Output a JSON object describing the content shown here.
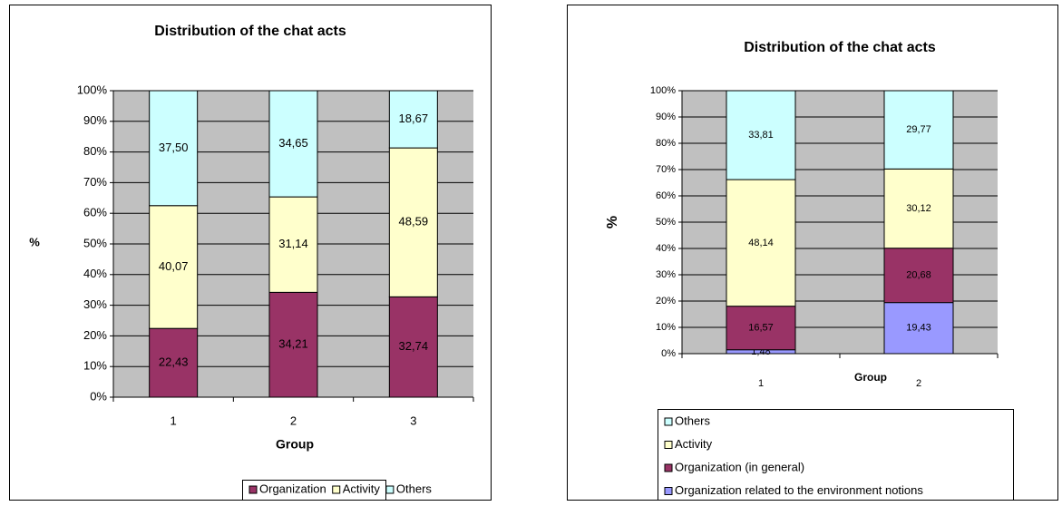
{
  "chart_data": [
    {
      "type": "bar",
      "stacked": true,
      "title": "Distribution of the chat acts",
      "x_label": "Group",
      "y_label": "%",
      "categories": [
        "1",
        "2",
        "3"
      ],
      "series": [
        {
          "name": "Organization",
          "color": "#993366",
          "values": [
            22.43,
            34.21,
            32.74
          ],
          "value_labels": [
            "22,43",
            "34,21",
            "32,74"
          ]
        },
        {
          "name": "Activity",
          "color": "#ffffcc",
          "values": [
            40.07,
            31.14,
            48.59
          ],
          "value_labels": [
            "40,07",
            "31,14",
            "48,59"
          ]
        },
        {
          "name": "Others",
          "color": "#ccffff",
          "values": [
            37.5,
            34.65,
            18.67
          ],
          "value_labels": [
            "37,50",
            "34,65",
            "18,67"
          ]
        }
      ],
      "ylim": [
        0,
        100
      ],
      "yticks": [
        {
          "value": 0,
          "label": "0%"
        },
        {
          "value": 10,
          "label": "10%"
        },
        {
          "value": 20,
          "label": "20%"
        },
        {
          "value": 30,
          "label": "30%"
        },
        {
          "value": 40,
          "label": "40%"
        },
        {
          "value": 50,
          "label": "50%"
        },
        {
          "value": 60,
          "label": "60%"
        },
        {
          "value": 70,
          "label": "70%"
        },
        {
          "value": 80,
          "label": "80%"
        },
        {
          "value": 90,
          "label": "90%"
        },
        {
          "value": 100,
          "label": "100%"
        }
      ],
      "grid": true,
      "legend": "bottom"
    },
    {
      "type": "bar",
      "stacked": true,
      "title": "Distribution of the chat acts",
      "x_label": "Group",
      "y_label": "%",
      "categories": [
        "1",
        "2"
      ],
      "series": [
        {
          "name": "Organization related to the environment notions",
          "color": "#9999ff",
          "values": [
            1.48,
            19.43
          ],
          "value_labels": [
            "1,48",
            "19,43"
          ]
        },
        {
          "name": "Organization (in general)",
          "color": "#993366",
          "values": [
            16.57,
            20.68
          ],
          "value_labels": [
            "16,57",
            "20,68"
          ]
        },
        {
          "name": "Activity",
          "color": "#ffffcc",
          "values": [
            48.14,
            30.12
          ],
          "value_labels": [
            "48,14",
            "30,12"
          ]
        },
        {
          "name": "Others",
          "color": "#ccffff",
          "values": [
            33.81,
            29.77
          ],
          "value_labels": [
            "33,81",
            "29,77"
          ]
        }
      ],
      "ylim": [
        0,
        100
      ],
      "yticks": [
        {
          "value": 0,
          "label": "0%"
        },
        {
          "value": 10,
          "label": "10%"
        },
        {
          "value": 20,
          "label": "20%"
        },
        {
          "value": 30,
          "label": "30%"
        },
        {
          "value": 40,
          "label": "40%"
        },
        {
          "value": 50,
          "label": "50%"
        },
        {
          "value": 60,
          "label": "60%"
        },
        {
          "value": 70,
          "label": "70%"
        },
        {
          "value": 80,
          "label": "80%"
        },
        {
          "value": 90,
          "label": "90%"
        },
        {
          "value": 100,
          "label": "100%"
        }
      ],
      "grid": true,
      "legend": "bottom"
    }
  ]
}
